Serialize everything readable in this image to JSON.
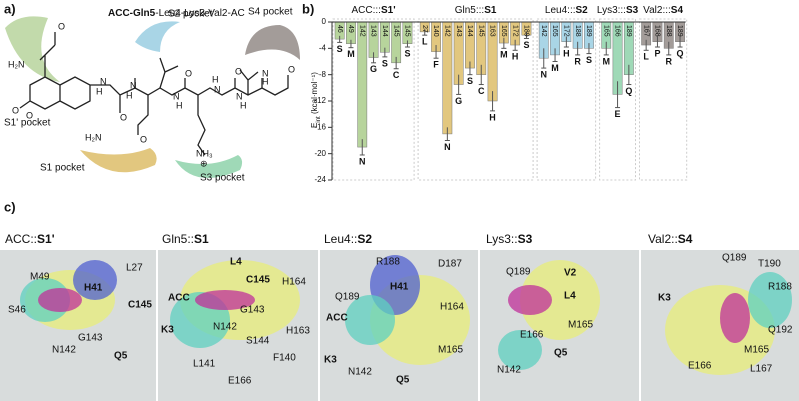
{
  "panel_a": {
    "label": "a)",
    "title_bold": "ACC-Gln5",
    "title_rest": "-Leu4-Lys3-Val2-AC",
    "pockets": [
      "S1' pocket",
      "S2 pocket",
      "S4 pocket",
      "S1 pocket",
      "S3 pocket"
    ],
    "atoms": [
      "H₂N",
      "O",
      "O",
      "O",
      "H",
      "N",
      "O",
      "H",
      "N",
      "N",
      "H",
      "O",
      "H",
      "N",
      "N",
      "H",
      "O",
      "H",
      "N",
      "O",
      "H₂N",
      "O",
      "NH₃",
      "⊕"
    ]
  },
  "chart_data": {
    "type": "bar",
    "label": "b)",
    "ylabel": "E",
    "ylabel_sub": "int",
    "ylabel_unit": " (kcal·mol⁻¹)",
    "ylim": [
      -24,
      0
    ],
    "yticks": [
      0,
      -4,
      -8,
      -12,
      -16,
      -20,
      -24
    ],
    "groups": [
      {
        "name": "ACC:::",
        "pocket": "S1'",
        "color": "#b7d49c",
        "residue_numbers": [
          "46",
          "49",
          "142",
          "143",
          "144",
          "145",
          "145"
        ],
        "categories": [
          "S",
          "M",
          "N",
          "G",
          "S",
          "C",
          "S"
        ],
        "values": [
          -2.6,
          -3.3,
          -19,
          -5.4,
          -4.6,
          -6.2,
          -3.3
        ],
        "errors": [
          0.5,
          0.6,
          1.2,
          0.8,
          0.7,
          0.9,
          0.5
        ]
      },
      {
        "name": "Gln5:::",
        "pocket": "S1",
        "color": "#e2c77f",
        "residue_numbers": [
          "27",
          "140",
          "142",
          "143",
          "144",
          "145",
          "163",
          "165",
          "172",
          "189"
        ],
        "categories": [
          "L",
          "F",
          "N",
          "G",
          "S",
          "C",
          "H",
          "M",
          "H",
          "S"
        ],
        "values": [
          -1.5,
          -4.5,
          -17,
          -9.5,
          -7,
          -8,
          -12,
          -3.2,
          -3.5,
          -2
        ],
        "errors": [
          0.5,
          1,
          1,
          1.5,
          1,
          1.5,
          1.5,
          0.8,
          0.8,
          0.5
        ]
      },
      {
        "name": "Leu4:::",
        "pocket": "S2",
        "color": "#a9d5e6",
        "residue_numbers": [
          "142",
          "165",
          "172",
          "188",
          "189"
        ],
        "categories": [
          "N",
          "M",
          "H",
          "R",
          "S"
        ],
        "values": [
          -5.5,
          -5,
          -3,
          -4,
          -4
        ],
        "errors": [
          1.5,
          1,
          0.8,
          1,
          0.8
        ]
      },
      {
        "name": "Lys3:::",
        "pocket": "S3",
        "color": "#9fd9b7",
        "residue_numbers": [
          "165",
          "166",
          "189"
        ],
        "categories": [
          "M",
          "E",
          "Q"
        ],
        "values": [
          -4,
          -11,
          -8
        ],
        "errors": [
          1,
          2,
          1.5
        ]
      },
      {
        "name": "Val2:::",
        "pocket": "S4",
        "color": "#a39c99",
        "residue_numbers": [
          "167",
          "168",
          "188",
          "189"
        ],
        "categories": [
          "L",
          "P",
          "R",
          "Q"
        ],
        "values": [
          -3.5,
          -3,
          -4,
          -3
        ],
        "errors": [
          0.8,
          0.8,
          1,
          0.8
        ]
      }
    ]
  },
  "panel_c": {
    "label": "c)",
    "panels": [
      {
        "name": "ACC::",
        "pocket": "S1'",
        "labels": [
          "M49",
          "L27",
          "S46",
          "H41",
          "C145",
          "N142",
          "G143",
          "Q5"
        ]
      },
      {
        "name": "Gln5::",
        "pocket": "S1",
        "labels": [
          "ACC",
          "L4",
          "C145",
          "H164",
          "K3",
          "N142",
          "G143",
          "H163",
          "S144",
          "L141",
          "F140",
          "E166"
        ]
      },
      {
        "name": "Leu4::",
        "pocket": "S2",
        "labels": [
          "R188",
          "D187",
          "H41",
          "Q189",
          "ACC",
          "H164",
          "K3",
          "M165",
          "N142",
          "Q5"
        ]
      },
      {
        "name": "Lys3::",
        "pocket": "S3",
        "labels": [
          "Q189",
          "V2",
          "L4",
          "M165",
          "E166",
          "Q5",
          "N142"
        ]
      },
      {
        "name": "Val2::",
        "pocket": "S4",
        "labels": [
          "K3",
          "Q189",
          "T190",
          "R188",
          "Q192",
          "M165",
          "E166",
          "L167"
        ]
      }
    ]
  }
}
